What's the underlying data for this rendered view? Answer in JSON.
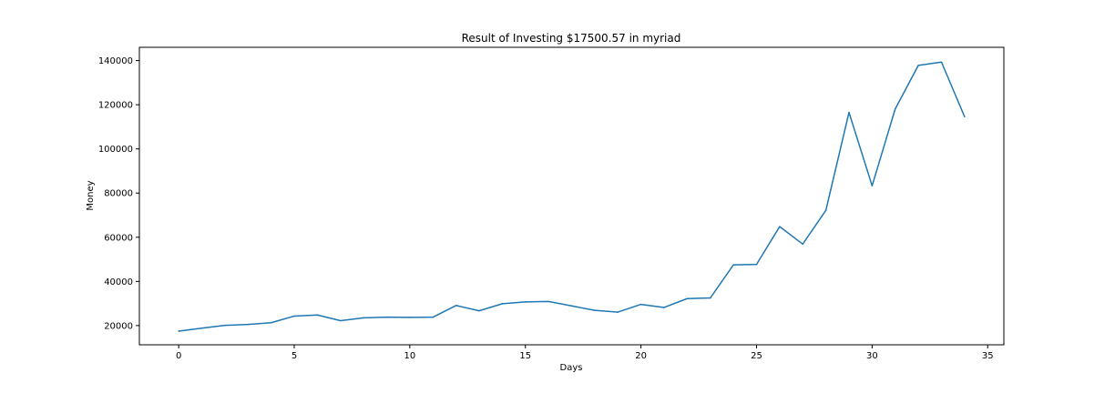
{
  "chart_data": {
    "type": "line",
    "title": "Result of Investing $17500.57 in myriad",
    "xlabel": "Days",
    "ylabel": "Money",
    "xlim": [
      -1.7,
      35.7
    ],
    "ylim": [
      11300,
      146000
    ],
    "xticks": [
      0,
      5,
      10,
      15,
      20,
      25,
      30,
      35
    ],
    "yticks": [
      20000,
      40000,
      60000,
      80000,
      100000,
      120000,
      140000
    ],
    "grid": false,
    "line_color": "#1f77b4",
    "series": [
      {
        "x": [
          0,
          1,
          2,
          3,
          4,
          5,
          6,
          7,
          8,
          9,
          10,
          11,
          12,
          13,
          14,
          15,
          16,
          17,
          18,
          19,
          20,
          21,
          22,
          23,
          24,
          25,
          26,
          27,
          28,
          29,
          30,
          31,
          32,
          33,
          34
        ],
        "values": [
          17500.57,
          18800,
          20100,
          20500,
          21300,
          24300,
          24800,
          22200,
          23500,
          23800,
          23700,
          23800,
          29100,
          26700,
          29900,
          30700,
          30900,
          28900,
          26900,
          26100,
          29600,
          28200,
          32200,
          32500,
          47500,
          47700,
          64800,
          56900,
          72200,
          116500,
          83300,
          118100,
          137800,
          139300,
          114600
        ]
      }
    ]
  }
}
